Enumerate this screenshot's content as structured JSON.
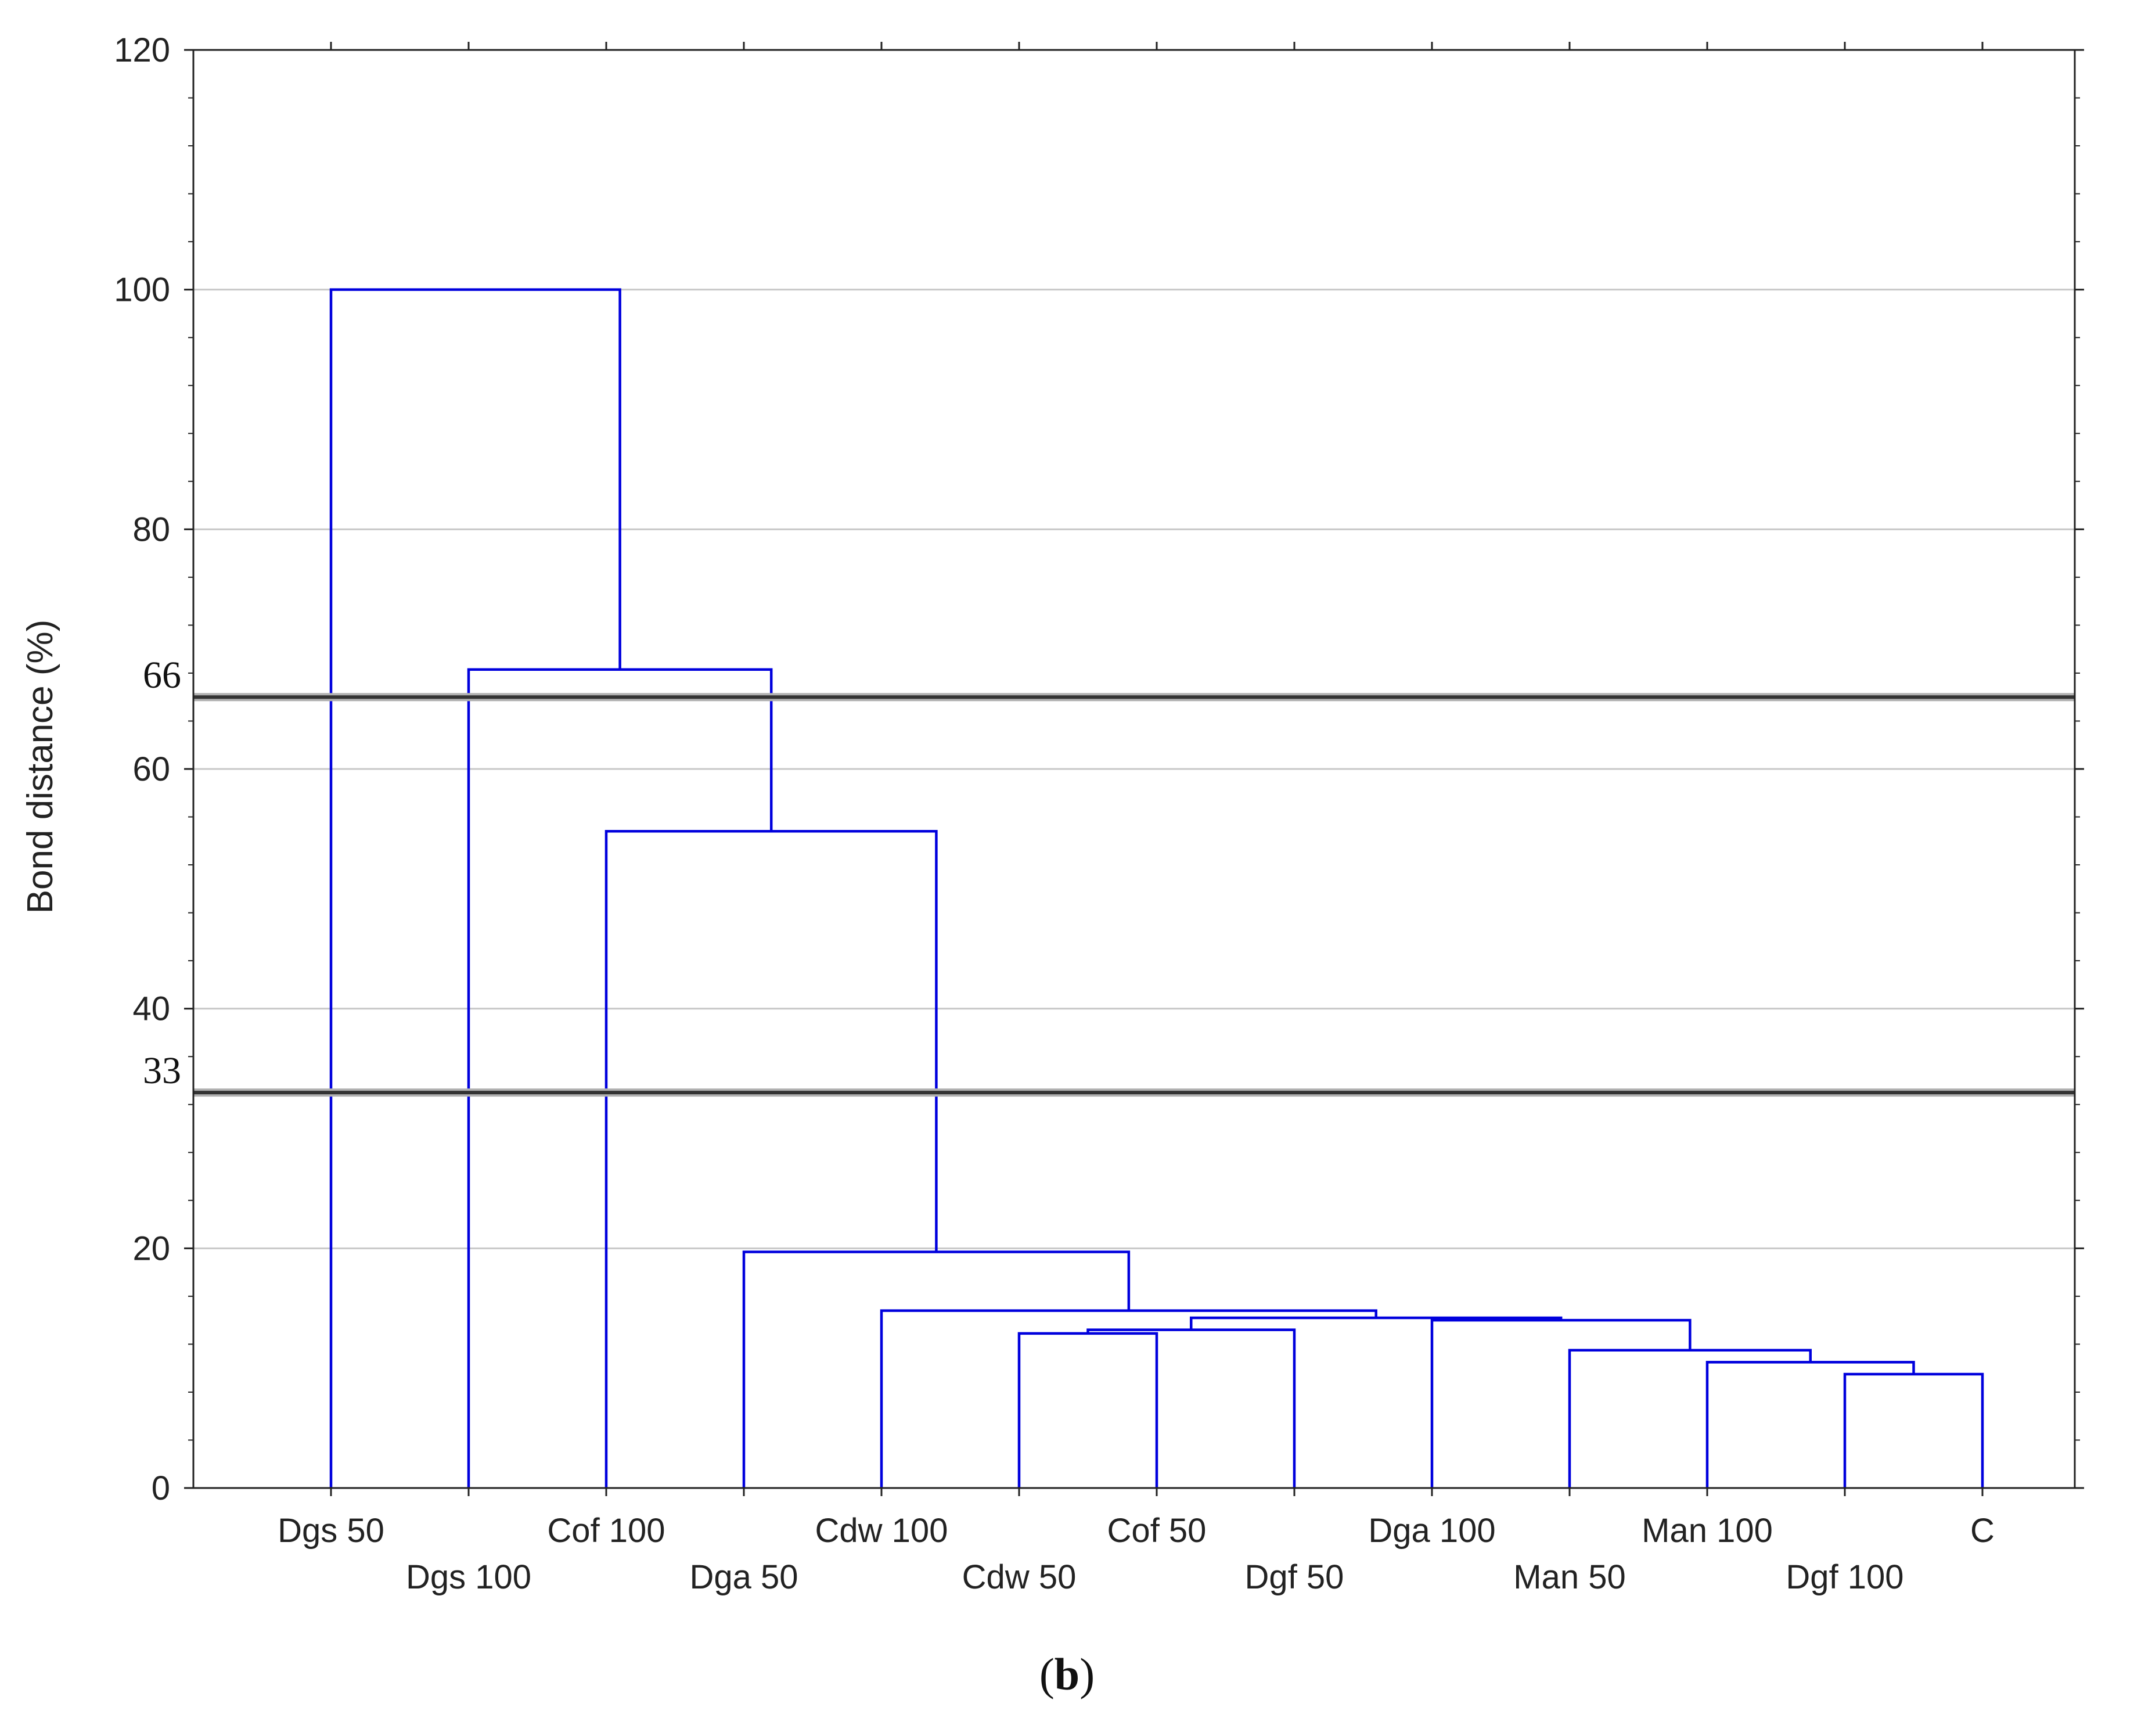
{
  "chart_data": {
    "type": "dendrogram",
    "ylabel": "Bond distance (%)",
    "ylim": [
      0,
      120
    ],
    "y_ticks": [
      0,
      20,
      40,
      60,
      80,
      100,
      120
    ],
    "grid": "horizontal major gridlines",
    "link_color": "#0000dd",
    "leaves": [
      "Dgs 50",
      "Dgs 100",
      "Cof 100",
      "Dga 50",
      "Cdw 100",
      "Cdw 50",
      "Cof 50",
      "Dgf 50",
      "Dga 100",
      "Man 50",
      "Man 100",
      "Dgf 100",
      "C"
    ],
    "merges": [
      {
        "left": "Dgf 100",
        "right": "C",
        "height": 9.5
      },
      {
        "left": "Man 100",
        "right": "cluster(Dgf 100, C)",
        "height": 10.5
      },
      {
        "left": "Man 50",
        "right": "cluster(Man 100, Dgf 100, C)",
        "height": 11.5
      },
      {
        "left": "Cdw 50",
        "right": "Cof 50",
        "height": 12.9
      },
      {
        "left": "cluster(Cdw 50, Cof 50)",
        "right": "Dgf 50",
        "height": 13.2
      },
      {
        "left": "Dga 100",
        "right": "cluster(Man 50 … C)",
        "height": 14.0
      },
      {
        "left": "cluster(Cdw 50, Cof 50, Dgf 50)",
        "right": "cluster(Dga 100 … C)",
        "height": 14.2
      },
      {
        "left": "Cdw 100",
        "right": "cluster(Cdw 50 … C)",
        "height": 14.8
      },
      {
        "left": "Dga 50",
        "right": "cluster(Cdw 100 … C)",
        "height": 19.7
      },
      {
        "left": "Cof 100",
        "right": "cluster(Dga 50 … C)",
        "height": 54.8
      },
      {
        "left": "Dgs 100",
        "right": "cluster(Cof 100 … C)",
        "height": 68.3
      },
      {
        "left": "Dgs 50",
        "right": "cluster(Dgs 100 … C)",
        "height": 100.0
      }
    ],
    "cut_lines": [
      {
        "label": "66",
        "value": 66
      },
      {
        "label": "33",
        "value": 33
      }
    ],
    "panel_label_open": "(",
    "panel_label_letter": "b",
    "panel_label_close": ")"
  }
}
